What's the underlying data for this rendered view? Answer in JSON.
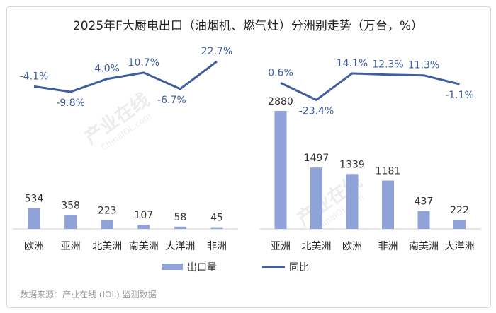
{
  "title": "2025年F大厨电出口（油烟机、燃气灶）分洲别走势（万台，%）",
  "source": "数据来源：产业在线 (IOL) 监测数据",
  "watermark": {
    "cn": "产业在线",
    "en": "ChinaIOL.com"
  },
  "colors": {
    "bar": "#8fa3d8",
    "line": "#3e5e9c",
    "label": "#333333",
    "pct_label": "#3e5e9c"
  },
  "chart_data": [
    {
      "type": "bar+line",
      "categories": [
        "欧洲",
        "亚洲",
        "北美洲",
        "南美洲",
        "大洋洲",
        "非洲"
      ],
      "series": [
        {
          "name": "出口量",
          "type": "bar",
          "values": [
            534,
            358,
            223,
            107,
            58,
            45
          ]
        },
        {
          "name": "同比",
          "type": "line",
          "values": [
            -4.1,
            -9.8,
            4.0,
            10.7,
            -6.7,
            22.7
          ]
        }
      ],
      "value_labels": [
        "534",
        "358",
        "223",
        "107",
        "58",
        "45"
      ],
      "pct_labels": [
        "-4.1%",
        "-9.8%",
        "4.0%",
        "10.7%",
        "-6.7%",
        "22.7%"
      ]
    },
    {
      "type": "bar+line",
      "categories": [
        "亚洲",
        "北美洲",
        "欧洲",
        "非洲",
        "南美洲",
        "大洋洲"
      ],
      "series": [
        {
          "name": "出口量",
          "type": "bar",
          "values": [
            2880,
            1497,
            1339,
            1181,
            437,
            222
          ]
        },
        {
          "name": "同比",
          "type": "line",
          "values": [
            0.6,
            -23.4,
            14.1,
            12.3,
            11.3,
            -1.1
          ]
        }
      ],
      "value_labels": [
        "2880",
        "1497",
        "1339",
        "1181",
        "437",
        "222"
      ],
      "pct_labels": [
        "0.6%",
        "-23.4%",
        "14.1%",
        "12.3%",
        "11.3%",
        "-1.1%"
      ]
    }
  ],
  "legend": {
    "bar_label": "出口量",
    "line_label": "同比"
  }
}
